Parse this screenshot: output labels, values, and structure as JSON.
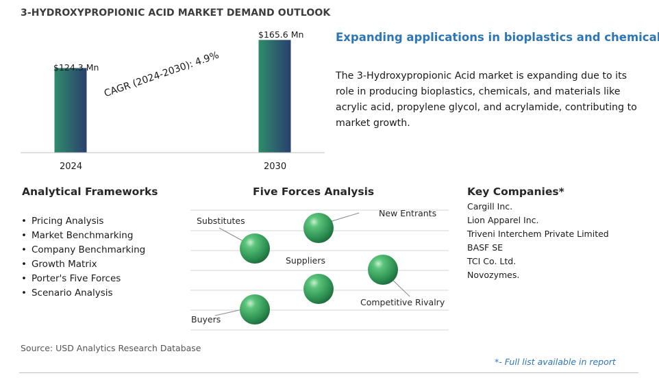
{
  "title": "3-HYDROXYPROPIONIC ACID MARKET DEMAND OUTLOOK",
  "chart_data": {
    "type": "bar",
    "categories": [
      "2024",
      "2030"
    ],
    "values": [
      124.3,
      165.6
    ],
    "value_labels": [
      "$124.3 Mn",
      "$165.6 Mn"
    ],
    "annotation": "CAGR (2024-2030):  4.9%",
    "ylim": [
      0,
      175
    ],
    "grid": false,
    "legend": false
  },
  "headline": "Expanding applications in bioplastics and chemicals.",
  "description": "The 3-Hydroxypropionic Acid market is expanding due to its role in producing bioplastics, chemicals, and materials like acrylic acid, propylene glycol, and acrylamide, contributing to market growth.",
  "frameworks": {
    "title": "Analytical Frameworks",
    "items": [
      "Pricing Analysis",
      "Market Benchmarking",
      "Company Benchmarking",
      "Growth Matrix",
      "Porter's Five Forces",
      "Scenario Analysis"
    ]
  },
  "five_forces": {
    "title": "Five Forces Analysis",
    "labels": {
      "substitutes": "Substitutes",
      "new_entrants": "New Entrants",
      "suppliers": "Suppliers",
      "competitive_rivalry": "Competitive Rivalry",
      "buyers": "Buyers"
    }
  },
  "companies": {
    "title": "Key Companies*",
    "items": [
      "Cargill Inc.",
      "Lion Apparel Inc.",
      "Triveni Interchem Private Limited",
      "BASF SE",
      "TCI Co. Ltd.",
      "Novozymes."
    ]
  },
  "source": "Source: USD Analytics Research Database",
  "footnote": "*- Full list available in report",
  "colors": {
    "bar_gradient_start": "#2e8c6a",
    "bar_gradient_end": "#2a3f6e",
    "sphere": "#3aa260",
    "headline": "#2e75b6",
    "footnote": "#2e75b6"
  }
}
